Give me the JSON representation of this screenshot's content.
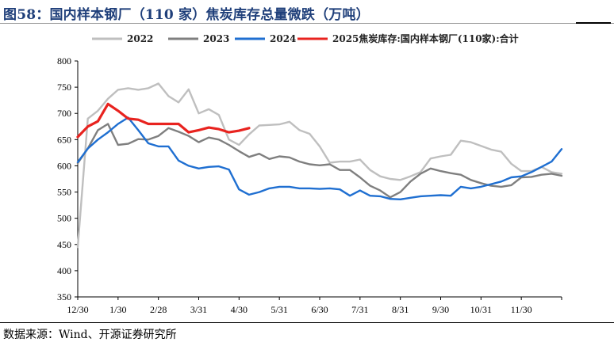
{
  "title": "图58：国内样本钢厂（110 家）焦炭库存总量微跌（万吨）",
  "source": "数据来源：Wind、开源证券研究所",
  "chart_data": {
    "type": "line",
    "title": "",
    "xlabel": "",
    "ylabel": "",
    "ylim": [
      350,
      800
    ],
    "yticks": [
      350,
      400,
      450,
      500,
      550,
      600,
      650,
      700,
      750,
      800
    ],
    "xtick_labels": [
      "12/30",
      "1/30",
      "2/28",
      "3/31",
      "4/30",
      "5/31",
      "6/30",
      "7/31",
      "8/31",
      "9/30",
      "10/31",
      "11/30"
    ],
    "grid": false,
    "legend_position": "top",
    "series": [
      {
        "name": "2022",
        "color": "#bfbfbf",
        "x": [
          0,
          0.25,
          0.5,
          0.75,
          1,
          1.25,
          1.5,
          1.75,
          2,
          2.25,
          2.5,
          2.75,
          3,
          3.25,
          3.5,
          3.75,
          4,
          4.25,
          4.5,
          4.75,
          5,
          5.25,
          5.5,
          5.75,
          6,
          6.25,
          6.5,
          6.75,
          7,
          7.25,
          7.5,
          7.75,
          8,
          8.25,
          8.5,
          8.75,
          9,
          9.25,
          9.5,
          9.75,
          10,
          10.25,
          10.5,
          10.75,
          11,
          11.25,
          11.5,
          11.75,
          12
        ],
        "values": [
          445,
          690,
          705,
          728,
          745,
          748,
          745,
          748,
          757,
          733,
          721,
          746,
          700,
          708,
          697,
          650,
          640,
          660,
          677,
          678,
          679,
          684,
          668,
          661,
          637,
          606,
          608,
          608,
          612,
          592,
          580,
          575,
          573,
          580,
          588,
          614,
          618,
          621,
          648,
          645,
          638,
          631,
          627,
          604,
          590,
          590,
          598,
          588,
          585
        ]
      },
      {
        "name": "2023",
        "color": "#7f7f7f",
        "x": [
          0,
          0.25,
          0.5,
          0.75,
          1,
          1.25,
          1.5,
          1.75,
          2,
          2.25,
          2.5,
          2.75,
          3,
          3.25,
          3.5,
          3.75,
          4,
          4.25,
          4.5,
          4.75,
          5,
          5.25,
          5.5,
          5.75,
          6,
          6.25,
          6.5,
          6.75,
          7,
          7.25,
          7.5,
          7.75,
          8,
          8.25,
          8.5,
          8.75,
          9,
          9.25,
          9.5,
          9.75,
          10,
          10.25,
          10.5,
          10.75,
          11,
          11.25,
          11.5,
          11.75,
          12
        ],
        "values": [
          605,
          633,
          668,
          680,
          640,
          642,
          651,
          650,
          657,
          672,
          665,
          657,
          645,
          654,
          650,
          640,
          628,
          617,
          623,
          613,
          618,
          616,
          608,
          603,
          601,
          603,
          592,
          592,
          578,
          562,
          553,
          540,
          550,
          570,
          585,
          595,
          590,
          586,
          583,
          573,
          567,
          562,
          560,
          563,
          578,
          579,
          583,
          585,
          581
        ]
      },
      {
        "name": "2024",
        "color": "#1f6fd1",
        "x": [
          0,
          0.25,
          0.5,
          0.75,
          1,
          1.25,
          1.5,
          1.75,
          2,
          2.25,
          2.5,
          2.75,
          3,
          3.25,
          3.5,
          3.75,
          4,
          4.25,
          4.5,
          4.75,
          5,
          5.25,
          5.5,
          5.75,
          6,
          6.25,
          6.5,
          6.75,
          7,
          7.25,
          7.5,
          7.75,
          8,
          8.25,
          8.5,
          8.75,
          9,
          9.25,
          9.5,
          9.75,
          10,
          10.25,
          10.5,
          10.75,
          11,
          11.25,
          11.5,
          11.75,
          12
        ],
        "values": [
          607,
          633,
          650,
          664,
          680,
          692,
          668,
          643,
          637,
          637,
          610,
          600,
          595,
          598,
          599,
          593,
          555,
          545,
          550,
          557,
          560,
          560,
          557,
          557,
          556,
          557,
          555,
          543,
          553,
          543,
          542,
          537,
          536,
          539,
          542,
          543,
          544,
          543,
          560,
          557,
          560,
          565,
          570,
          578,
          580,
          588,
          598,
          608,
          632
        ]
      },
      {
        "name": "2025焦炭库存:国内样本钢厂(110家):合计",
        "color": "#e8231f",
        "x": [
          0,
          0.25,
          0.5,
          0.75,
          1,
          1.25,
          1.5,
          1.75,
          2,
          2.25,
          2.5,
          2.75,
          3,
          3.25,
          3.5,
          3.75,
          4,
          4.25
        ],
        "values": [
          655,
          675,
          685,
          718,
          705,
          690,
          688,
          680,
          680,
          680,
          680,
          664,
          668,
          673,
          670,
          664,
          667,
          672
        ]
      }
    ]
  }
}
